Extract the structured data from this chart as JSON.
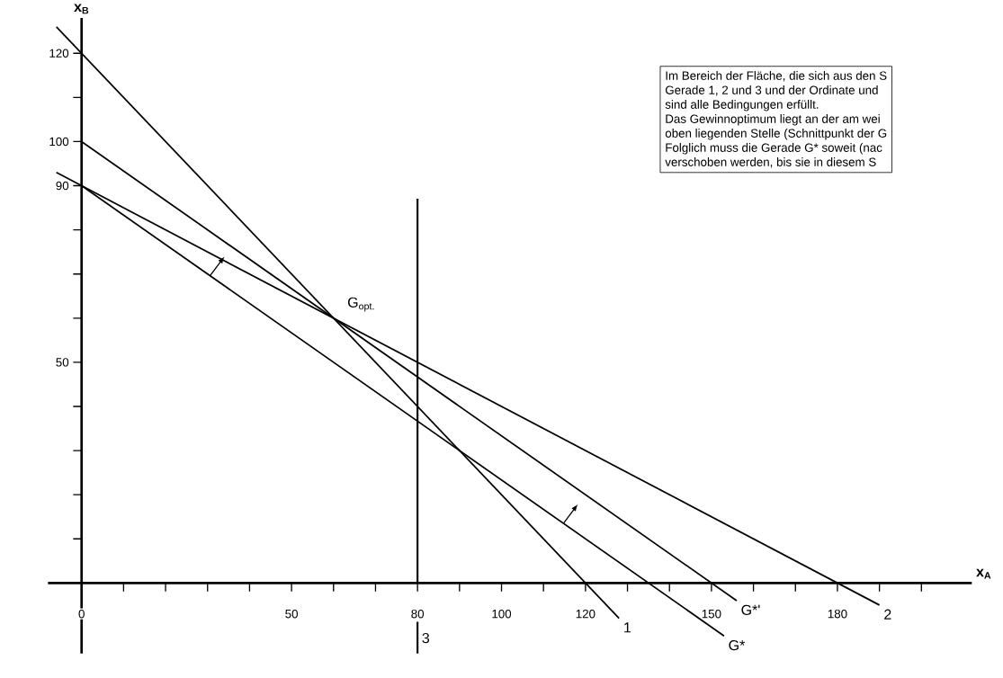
{
  "chart_data": {
    "type": "line",
    "xlabel": "x$_{A}$",
    "ylabel": "x$_{B}$",
    "xlim": [
      -8,
      212
    ],
    "ylim": [
      -16,
      128
    ],
    "xticks": [
      {
        "value": 0,
        "label": "0"
      },
      {
        "value": 10,
        "label": null
      },
      {
        "value": 20,
        "label": null
      },
      {
        "value": 30,
        "label": null
      },
      {
        "value": 40,
        "label": null
      },
      50,
      {
        "value": 60,
        "label": null
      },
      {
        "value": 70,
        "label": null
      },
      80,
      {
        "value": 90,
        "label": null
      },
      100,
      {
        "value": 110,
        "label": null
      },
      120,
      {
        "value": 130,
        "label": null
      },
      {
        "value": 140,
        "label": null
      },
      150,
      {
        "value": 160,
        "label": null
      },
      {
        "value": 170,
        "label": null
      },
      180,
      {
        "value": 190,
        "label": null
      },
      {
        "value": 200,
        "label": null
      }
    ],
    "yticks": [
      {
        "value": 10,
        "label": null
      },
      {
        "value": 20,
        "label": null
      },
      {
        "value": 30,
        "label": null
      },
      {
        "value": 40,
        "label": null
      },
      50,
      {
        "value": 60,
        "label": null
      },
      {
        "value": 70,
        "label": null
      },
      {
        "value": 80,
        "label": null
      },
      90,
      100,
      {
        "value": 110,
        "label": null
      },
      120
    ],
    "series": [
      {
        "color": "#000000",
        "x": [
          -6,
          128
        ],
        "values": [
          126,
          -8
        ]
      },
      {
        "color": "#000000",
        "x": [
          -6,
          190
        ],
        "values": [
          93,
          -5
        ]
      },
      {
        "color": "#000000",
        "x": [
          0,
          156
        ],
        "values": [
          100,
          -4
        ]
      },
      {
        "color": "#000000",
        "x": [
          0,
          153
        ],
        "values": [
          90,
          -12
        ]
      }
    ],
    "annotations": [
      {
        "text": "1",
        "x": 128,
        "y": -8
      },
      {
        "text": "2",
        "x": 190,
        "y": -5
      },
      {
        "text": "G*'",
        "x": 156,
        "y": -4
      },
      {
        "text": "G*",
        "x": 153,
        "y": -12
      },
      "3",
      {
        "text": "G$_{opt.}$",
        "x": 60,
        "y": 60
      },
      "Im Bereich der Fläche, die sich aus den S",
      "Gerade 1, 2 und 3 und der Ordinate und",
      "sind alle Bedingungen erfüllt.",
      "Das Gewinnoptimum liegt an der am wei",
      "oben liegenden Stelle (Schnittpunkt der G",
      "Folglich muss die Gerade G* soweit (nac",
      "verschoben werden, bis sie in diesem S"
    ],
    "ref_lines": [
      {
        "axis": "x",
        "value": 80,
        "color": "#000000"
      }
    ],
    "marker": "none",
    "line_style": "solid",
    "grid": false
  }
}
